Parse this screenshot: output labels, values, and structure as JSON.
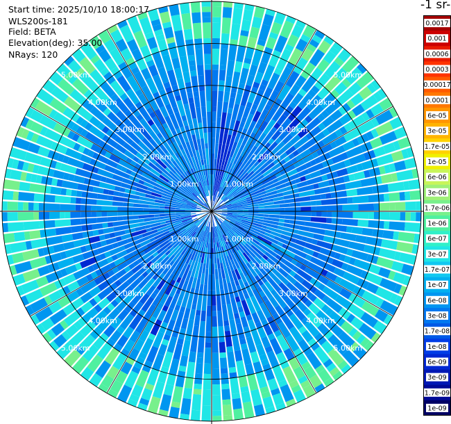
{
  "header": {
    "start_time": "Start time: 2025/10/10 18:00:17",
    "instrument": "WLS200s-181",
    "field": "Field: BETA",
    "elevation": "Elevation(deg): 35.00",
    "nrays": "NRays: 120"
  },
  "colorbar": {
    "title": "-1 sr-",
    "labels": [
      "0.0017",
      "0.001",
      "0.0006",
      "0.0003",
      "0.00017",
      "0.0001",
      "6e-05",
      "3e-05",
      "1.7e-05",
      "1e-05",
      "6e-06",
      "3e-06",
      "1.7e-06",
      "1e-06",
      "6e-07",
      "3e-07",
      "1.7e-07",
      "1e-07",
      "6e-08",
      "3e-08",
      "1.7e-08",
      "1e-08",
      "6e-09",
      "3e-09",
      "1.7e-09",
      "1e-09"
    ],
    "colors": [
      "#a50000",
      "#cc0000",
      "#e81a00",
      "#ff3300",
      "#ff5a00",
      "#ff7800",
      "#ff9600",
      "#ffb400",
      "#ffd200",
      "#f0f000",
      "#c8f55a",
      "#a0f078",
      "#78f08c",
      "#50f0a0",
      "#30f0c8",
      "#20e6e6",
      "#10c8f0",
      "#00b0f0",
      "#0096f0",
      "#0078f0",
      "#005ae6",
      "#003ce6",
      "#0028d2",
      "#0018b4",
      "#000a96",
      "#000064"
    ]
  },
  "chart_data": {
    "type": "heatmap",
    "projection": "polar PPI",
    "rays": 120,
    "max_range_km": 5.0,
    "range_rings_km": [
      1,
      2,
      3,
      4,
      5
    ],
    "ring_labels": [
      "1.00km",
      "2.00km",
      "3.00km",
      "4.00km",
      "5.00km"
    ],
    "quantity": "BETA",
    "color_scale": "log",
    "value_range": [
      1e-09,
      0.0017
    ]
  }
}
